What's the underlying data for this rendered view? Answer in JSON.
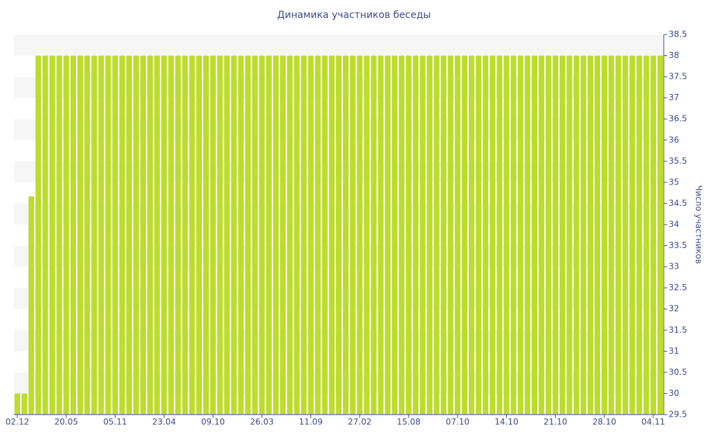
{
  "chart_data": {
    "type": "bar",
    "title": "Динамика участников беседы",
    "y_label": "Число участников",
    "categories": [
      "02.12",
      null,
      null,
      null,
      null,
      null,
      null,
      "20.05",
      null,
      null,
      null,
      null,
      null,
      null,
      "05.11",
      null,
      null,
      null,
      null,
      null,
      null,
      "23.04",
      null,
      null,
      null,
      null,
      null,
      null,
      "09.10",
      null,
      null,
      null,
      null,
      null,
      null,
      "26.03",
      null,
      null,
      null,
      null,
      null,
      null,
      "11.09",
      null,
      null,
      null,
      null,
      null,
      null,
      "27.02",
      null,
      null,
      null,
      null,
      null,
      null,
      "15.08",
      null,
      null,
      null,
      null,
      null,
      null,
      "07.10",
      null,
      null,
      null,
      null,
      null,
      null,
      "14.10",
      null,
      null,
      null,
      null,
      null,
      null,
      "21.10",
      null,
      null,
      null,
      null,
      null,
      null,
      "28.10",
      null,
      null,
      null,
      null,
      null,
      null,
      "04.11",
      null
    ],
    "values": [
      30,
      30,
      34.67,
      38,
      38,
      38,
      38,
      38,
      38,
      38,
      38,
      38,
      38,
      38,
      38,
      38,
      38,
      38,
      38,
      38,
      38,
      38,
      38,
      38,
      38,
      38,
      38,
      38,
      38,
      38,
      38,
      38,
      38,
      38,
      38,
      38,
      38,
      38,
      38,
      38,
      38,
      38,
      38,
      38,
      38,
      38,
      38,
      38,
      38,
      38,
      38,
      38,
      38,
      38,
      38,
      38,
      38,
      38,
      38,
      38,
      38,
      38,
      38,
      38,
      38,
      38,
      38,
      38,
      38,
      38,
      38,
      38,
      38,
      38,
      38,
      38,
      38,
      38,
      38,
      38,
      38,
      38,
      38,
      38,
      38,
      38,
      38,
      38,
      38,
      38,
      38,
      38,
      38
    ],
    "color": "#bddc2b",
    "ylim": [
      29.5,
      38.5
    ],
    "yticks": [
      29.5,
      30,
      30.5,
      31,
      31.5,
      32,
      32.5,
      33,
      33.5,
      34,
      34.5,
      35,
      35.5,
      36,
      36.5,
      37,
      37.5,
      38,
      38.5
    ],
    "grid": true
  }
}
